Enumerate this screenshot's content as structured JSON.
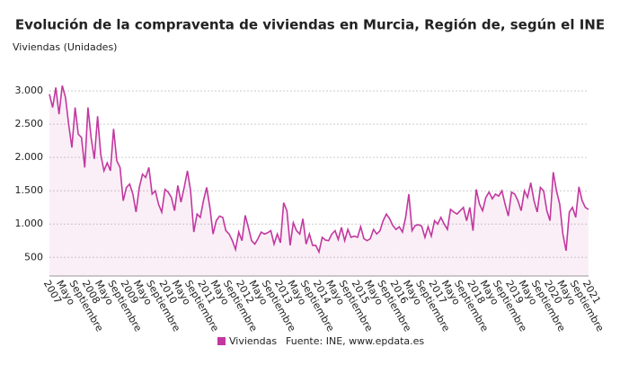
{
  "chart_data": {
    "type": "line",
    "title": "Evolución de la compraventa de viviendas en Murcia, Región de, según el INE",
    "y_label": "Viviendas (Unidades)",
    "source": "Fuente: INE, www.epdata.es",
    "categories": [
      "2007",
      null,
      null,
      null,
      "Mayo",
      null,
      null,
      null,
      "Septiembre",
      null,
      null,
      null,
      "2008",
      null,
      null,
      null,
      "Mayo",
      null,
      null,
      null,
      "Septiembre",
      null,
      null,
      null,
      "2009",
      null,
      null,
      null,
      "Mayo",
      null,
      null,
      null,
      "Septiembre",
      null,
      null,
      null,
      "2010",
      null,
      null,
      null,
      "Mayo",
      null,
      null,
      null,
      "Septiembre",
      null,
      null,
      null,
      "2011",
      null,
      null,
      null,
      "Mayo",
      null,
      null,
      null,
      "Septiembre",
      null,
      null,
      null,
      "2012",
      null,
      null,
      null,
      "Mayo",
      null,
      null,
      null,
      "Septiembre",
      null,
      null,
      null,
      "2013",
      null,
      null,
      null,
      "Mayo",
      null,
      null,
      null,
      "Septiembre",
      null,
      null,
      null,
      "2014",
      null,
      null,
      null,
      "Mayo",
      null,
      null,
      null,
      "Septiembre",
      null,
      null,
      null,
      "2015",
      null,
      null,
      null,
      "Mayo",
      null,
      null,
      null,
      "Septiembre",
      null,
      null,
      null,
      "2016",
      null,
      null,
      null,
      "Mayo",
      null,
      null,
      null,
      "Septiembre",
      null,
      null,
      null,
      "2017",
      null,
      null,
      null,
      "Mayo",
      null,
      null,
      null,
      "Septiembre",
      null,
      null,
      null,
      "2018",
      null,
      null,
      null,
      "Mayo",
      null,
      null,
      null,
      "Septiembre",
      null,
      null,
      null,
      "2019",
      null,
      null,
      null,
      "Mayo",
      null,
      null,
      null,
      "Septiembre",
      null,
      null,
      null,
      "2020",
      null,
      null,
      null,
      "Mayo",
      null,
      null,
      null,
      "Septiembre",
      null,
      null,
      null,
      "2021"
    ],
    "series": [
      {
        "name": "Viviendas",
        "color": "#c2389f",
        "values": [
          2950,
          2750,
          3050,
          2650,
          3080,
          2900,
          2500,
          2150,
          2750,
          2350,
          2300,
          1850,
          2750,
          2300,
          1980,
          2620,
          2050,
          1800,
          1920,
          1800,
          2430,
          1950,
          1850,
          1350,
          1550,
          1600,
          1450,
          1180,
          1550,
          1750,
          1700,
          1850,
          1450,
          1500,
          1300,
          1180,
          1520,
          1480,
          1400,
          1200,
          1580,
          1330,
          1550,
          1800,
          1500,
          880,
          1150,
          1100,
          1350,
          1550,
          1250,
          850,
          1050,
          1120,
          1100,
          900,
          850,
          750,
          620,
          880,
          750,
          1130,
          950,
          750,
          700,
          780,
          880,
          850,
          870,
          900,
          700,
          850,
          720,
          1320,
          1200,
          680,
          1020,
          900,
          850,
          1080,
          700,
          850,
          680,
          680,
          580,
          800,
          760,
          750,
          850,
          900,
          770,
          950,
          750,
          920,
          800,
          820,
          800,
          960,
          780,
          750,
          780,
          920,
          850,
          900,
          1050,
          1150,
          1080,
          980,
          920,
          960,
          880,
          1100,
          1450,
          900,
          980,
          990,
          970,
          800,
          960,
          820,
          1050,
          1000,
          1100,
          1000,
          920,
          1220,
          1180,
          1150,
          1200,
          1250,
          1050,
          1250,
          900,
          1520,
          1300,
          1200,
          1400,
          1480,
          1380,
          1450,
          1420,
          1500,
          1300,
          1120,
          1480,
          1450,
          1350,
          1200,
          1500,
          1400,
          1620,
          1350,
          1180,
          1550,
          1500,
          1200,
          1050,
          1780,
          1500,
          1300,
          850,
          600,
          1180,
          1250,
          1100,
          1560,
          1350,
          1250,
          1220
        ]
      }
    ],
    "ylim": [
      220,
      3150
    ],
    "yticks": [
      500,
      {
        "value": 1000,
        "label": "1.000"
      },
      {
        "value": 1500,
        "label": "1.500"
      },
      {
        "value": 2000,
        "label": "2.000"
      },
      {
        "value": 2500,
        "label": "2.500"
      },
      {
        "value": 3000,
        "label": "3.000"
      }
    ],
    "grid": true
  }
}
